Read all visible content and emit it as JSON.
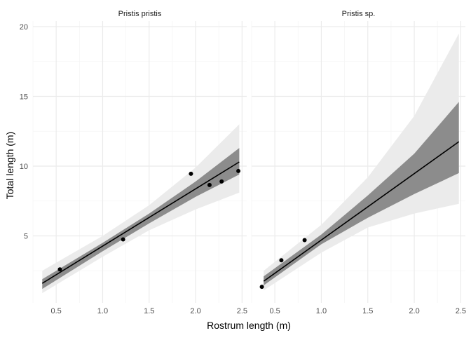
{
  "chart_data": {
    "type": "scatter",
    "xlabel": "Rostrum length (m)",
    "ylabel": "Total length (m)",
    "xlim": [
      0.25,
      2.55
    ],
    "ylim": [
      0.2,
      20.4
    ],
    "xticks": [
      0.5,
      1.0,
      1.5,
      2.0,
      2.5
    ],
    "xtick_labels": [
      "0.5",
      "1.0",
      "1.5",
      "2.0",
      "2.5"
    ],
    "yticks": [
      5,
      10,
      15,
      20
    ],
    "ytick_labels": [
      "5",
      "10",
      "15",
      "20"
    ],
    "grid": true,
    "legend": "none",
    "colors": {
      "points": "#000000",
      "fit_line": "#000000",
      "inner_band": "#8c8c8c",
      "outer_band": "#ebebeb",
      "grid_major": "#ebebeb",
      "grid_minor": "#f5f5f5"
    },
    "panels": [
      {
        "title": "Pristis pristis",
        "points": [
          {
            "x": 0.54,
            "y": 2.6
          },
          {
            "x": 1.22,
            "y": 4.75
          },
          {
            "x": 1.95,
            "y": 9.45
          },
          {
            "x": 2.15,
            "y": 8.65
          },
          {
            "x": 2.28,
            "y": 8.9
          },
          {
            "x": 2.46,
            "y": 9.65
          }
        ],
        "fit_line": [
          {
            "x": 0.35,
            "y": 1.6
          },
          {
            "x": 2.47,
            "y": 10.3
          }
        ],
        "inner_band": {
          "x": [
            0.35,
            1.0,
            1.5,
            2.0,
            2.47
          ],
          "lower": [
            1.2,
            3.9,
            5.9,
            7.8,
            9.4
          ],
          "upper": [
            1.9,
            4.5,
            6.6,
            8.9,
            11.3
          ]
        },
        "outer_band": {
          "x": [
            0.35,
            1.0,
            1.5,
            2.0,
            2.47
          ],
          "lower": [
            0.9,
            3.5,
            5.4,
            6.9,
            8.1
          ],
          "upper": [
            2.5,
            5.0,
            7.2,
            9.9,
            13.0
          ]
        }
      },
      {
        "title": "Pristis sp.",
        "points": [
          {
            "x": 0.36,
            "y": 1.35
          },
          {
            "x": 0.57,
            "y": 3.25
          },
          {
            "x": 0.82,
            "y": 4.7
          }
        ],
        "fit_line": [
          {
            "x": 0.38,
            "y": 1.75
          },
          {
            "x": 2.48,
            "y": 11.75
          }
        ],
        "inner_band": {
          "x": [
            0.38,
            1.0,
            1.5,
            2.0,
            2.48
          ],
          "lower": [
            1.45,
            4.4,
            6.3,
            8.0,
            9.5
          ],
          "upper": [
            2.1,
            5.1,
            7.9,
            10.9,
            14.6
          ]
        },
        "outer_band": {
          "x": [
            0.38,
            1.0,
            1.5,
            2.0,
            2.48
          ],
          "lower": [
            1.1,
            3.8,
            5.6,
            6.6,
            7.3
          ],
          "upper": [
            2.5,
            5.8,
            9.2,
            13.6,
            19.5
          ]
        }
      }
    ]
  }
}
